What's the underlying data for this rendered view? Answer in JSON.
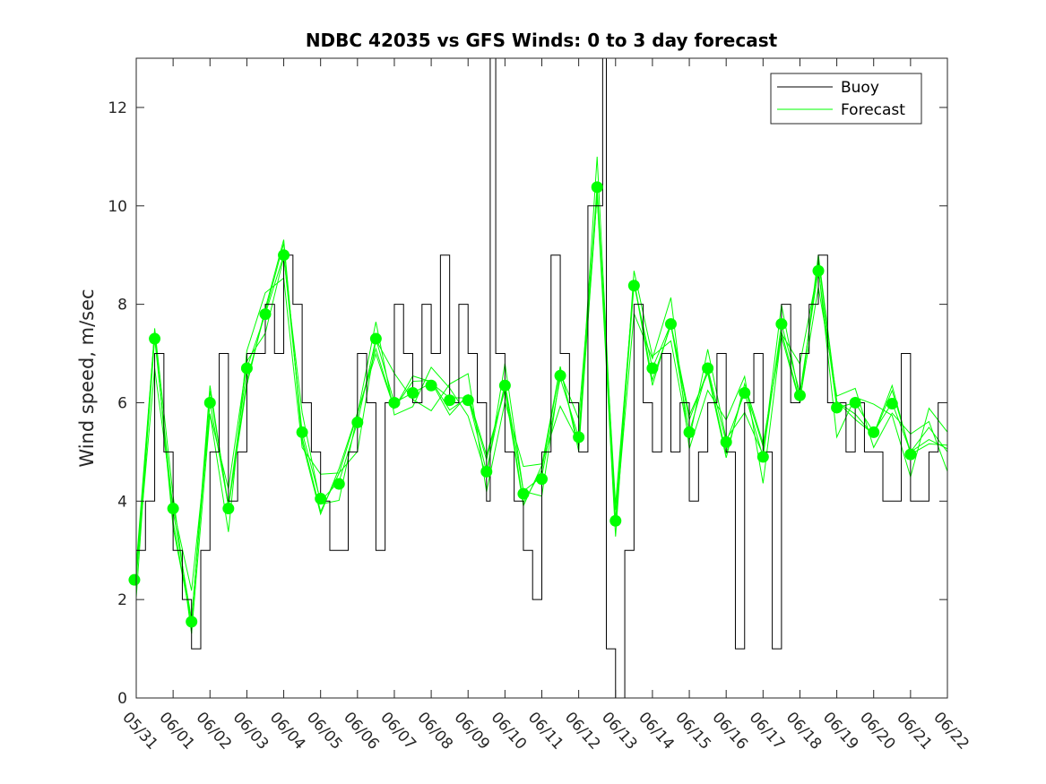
{
  "chart_data": {
    "type": "line",
    "title": "NDBC 42035 vs GFS Winds: 0 to 3 day forecast",
    "xlabel": "",
    "ylabel": "Wind speed, m/sec",
    "xlim": [
      "05/31",
      "06/22"
    ],
    "ylim": [
      0,
      13
    ],
    "x_ticks": [
      "05/31",
      "06/01",
      "06/02",
      "06/03",
      "06/04",
      "06/05",
      "06/06",
      "06/07",
      "06/08",
      "06/09",
      "06/10",
      "06/11",
      "06/12",
      "06/13",
      "06/14",
      "06/15",
      "06/16",
      "06/17",
      "06/18",
      "06/19",
      "06/20",
      "06/21",
      "06/22"
    ],
    "y_ticks": [
      0,
      2,
      4,
      6,
      8,
      10,
      12
    ],
    "grid": false,
    "legend": {
      "position": "top-right",
      "entries": [
        "Buoy",
        "Forecast"
      ]
    },
    "colors": {
      "buoy": "#000000",
      "forecast": "#00ff00",
      "axis": "#262626"
    },
    "series": [
      {
        "name": "Buoy",
        "style": "stairs",
        "x_days": [
          0.0,
          0.25,
          0.5,
          0.75,
          1.0,
          1.25,
          1.5,
          1.75,
          2.0,
          2.25,
          2.5,
          2.75,
          3.0,
          3.25,
          3.5,
          3.75,
          4.0,
          4.25,
          4.5,
          4.75,
          5.0,
          5.25,
          5.5,
          5.75,
          6.0,
          6.25,
          6.5,
          6.75,
          7.0,
          7.25,
          7.5,
          7.75,
          8.0,
          8.25,
          8.5,
          8.75,
          9.0,
          9.25,
          9.5,
          9.6,
          9.75,
          10.0,
          10.25,
          10.5,
          10.75,
          11.0,
          11.25,
          11.5,
          11.75,
          12.0,
          12.25,
          12.5,
          12.65,
          12.75,
          13.0,
          13.25,
          13.5,
          13.75,
          14.0,
          14.25,
          14.5,
          14.75,
          15.0,
          15.25,
          15.5,
          15.75,
          16.0,
          16.25,
          16.5,
          16.75,
          17.0,
          17.25,
          17.5,
          17.75,
          18.0,
          18.25,
          18.5,
          18.75,
          19.0,
          19.25,
          19.5,
          19.75,
          20.0,
          20.25,
          20.5,
          20.75,
          21.0,
          21.25,
          21.5,
          21.75,
          22.0
        ],
        "y": [
          3,
          4,
          7,
          5,
          3,
          2,
          1,
          3,
          5,
          7,
          4,
          5,
          7,
          7,
          8,
          7,
          9,
          8,
          6,
          5,
          4,
          3,
          3,
          5,
          7,
          6,
          3,
          6,
          8,
          7,
          6,
          8,
          7,
          9,
          6,
          8,
          7,
          6,
          4,
          13,
          7,
          5,
          4,
          3,
          2,
          5,
          9,
          7,
          6,
          5,
          10,
          10,
          13,
          1,
          0,
          3,
          8,
          6,
          5,
          7,
          5,
          6,
          4,
          5,
          6,
          7,
          5,
          1,
          6,
          7,
          5,
          1,
          8,
          6,
          7,
          8,
          9,
          6,
          6,
          5,
          6,
          5,
          5,
          4,
          4,
          7,
          4,
          4,
          5,
          6,
          5
        ]
      },
      {
        "name": "Forecast",
        "style": "lines",
        "x_days": [
          0.0,
          0.5,
          1.0,
          1.5,
          2.0,
          2.5,
          3.0,
          3.5,
          4.0,
          4.5,
          5.0,
          5.5,
          6.0,
          6.5,
          7.0,
          7.5,
          8.0,
          8.5,
          9.0,
          9.5,
          10.0,
          10.5,
          11.0,
          11.5,
          12.0,
          12.5,
          13.0,
          13.5,
          14.0,
          14.5,
          15.0,
          15.5,
          16.0,
          16.5,
          17.0,
          17.5,
          18.0,
          18.5,
          19.0,
          19.5,
          20.0,
          20.5,
          21.0,
          21.5,
          22.0
        ],
        "y": [
          2.4,
          7.3,
          3.8,
          1.6,
          6.0,
          3.9,
          6.7,
          7.8,
          9.0,
          5.4,
          4.0,
          4.4,
          5.6,
          7.3,
          6.0,
          6.2,
          6.4,
          6.1,
          6.1,
          4.6,
          6.4,
          4.2,
          4.5,
          6.5,
          5.3,
          10.4,
          3.6,
          8.4,
          6.7,
          7.6,
          5.4,
          6.7,
          5.2,
          6.2,
          4.9,
          7.6,
          6.2,
          8.7,
          5.9,
          6.0,
          5.4,
          6.0,
          5.0,
          5.5,
          5.0
        ],
        "markers_x_days": [
          -0.05,
          0.5,
          1.0,
          1.5,
          2.0,
          2.5,
          3.0,
          3.5,
          4.0,
          4.5,
          5.0,
          5.5,
          6.0,
          6.5,
          7.0,
          7.5,
          8.0,
          8.5,
          9.0,
          9.5,
          10.0,
          10.5,
          11.0,
          11.5,
          12.0,
          12.5,
          13.0,
          13.5,
          14.0,
          14.5,
          15.0,
          15.5,
          16.0,
          16.5,
          17.0,
          17.5,
          18.0,
          18.5,
          19.0,
          19.5,
          20.0,
          20.5,
          21.0
        ],
        "markers_y": [
          2.4,
          7.3,
          3.85,
          1.55,
          6.0,
          3.85,
          6.7,
          7.8,
          9.0,
          5.4,
          4.05,
          4.35,
          5.6,
          7.3,
          6.0,
          6.2,
          6.35,
          6.05,
          6.05,
          4.6,
          6.35,
          4.15,
          4.45,
          6.55,
          5.3,
          10.38,
          3.6,
          8.38,
          6.7,
          7.6,
          5.4,
          6.7,
          5.2,
          6.2,
          4.9,
          7.6,
          6.15,
          8.68,
          5.9,
          6.0,
          5.4,
          5.98,
          4.95
        ]
      }
    ]
  }
}
